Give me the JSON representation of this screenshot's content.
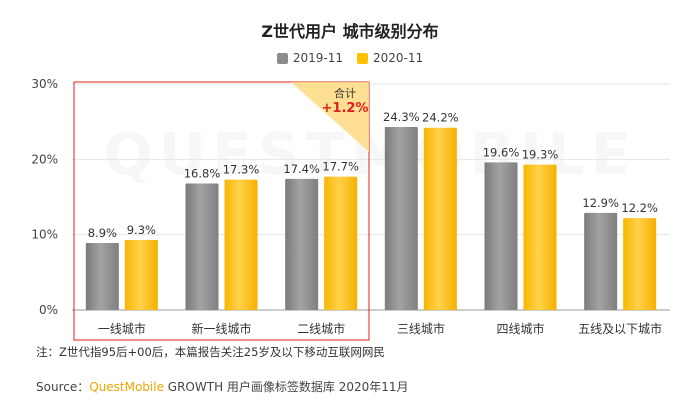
{
  "title": "Z世代用户 城市级别分布",
  "legend": [
    {
      "name": "2019-11",
      "color": "#8c8c8c"
    },
    {
      "name": "2020-11",
      "color": "#ffc000"
    }
  ],
  "highlight": {
    "label": "合计",
    "value": "+1.2%",
    "value_color": "#e0201c"
  },
  "watermark": "QUESTMOBILE",
  "note": "注：Z世代指95后+00后，本篇报告关注25岁及以下移动互联网网民",
  "source": {
    "prefix": "Source：",
    "brand": "QuestMobile",
    "rest": " GROWTH 用户画像标签数据库 2020年11月"
  },
  "chart_data": {
    "type": "bar",
    "categories": [
      "一线城市",
      "新一线城市",
      "二线城市",
      "三线城市",
      "四线城市",
      "五线及以下城市"
    ],
    "series": [
      {
        "name": "2019-11",
        "values": [
          8.9,
          16.8,
          17.4,
          24.3,
          19.6,
          12.9
        ],
        "labels": [
          "8.9%",
          "16.8%",
          "17.4%",
          "24.3%",
          "19.6%",
          "12.9%"
        ]
      },
      {
        "name": "2020-11",
        "values": [
          9.3,
          17.3,
          17.7,
          24.2,
          19.3,
          12.2
        ],
        "labels": [
          "9.3%",
          "17.3%",
          "17.7%",
          "24.2%",
          "19.3%",
          "12.2%"
        ]
      }
    ],
    "yticks": [
      "0%",
      "10%",
      "20%",
      "30%"
    ],
    "ylim": [
      0,
      30
    ],
    "highlighted_categories": [
      "一线城市",
      "新一线城市",
      "二线城市"
    ]
  }
}
